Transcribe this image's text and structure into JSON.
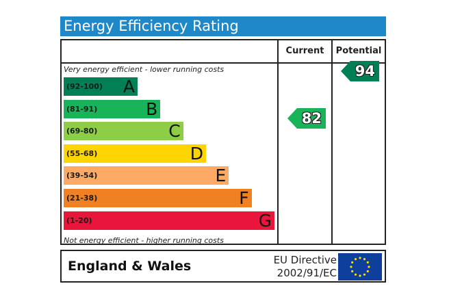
{
  "title": "Energy Efficiency Rating",
  "columns": {
    "current": "Current",
    "potential": "Potential"
  },
  "top_note": "Very energy efficient - lower running costs",
  "bottom_note": "Not energy efficient - higher running costs",
  "footer": {
    "region": "England & Wales",
    "directive_line1": "EU Directive",
    "directive_line2": "2002/91/EC"
  },
  "colors": {
    "title_bg": "#1e88c9",
    "flag": "#0f3f9c",
    "stars": "#ffdd00"
  },
  "chart_data": {
    "type": "bar",
    "title": "Energy Efficiency Rating",
    "bands": [
      {
        "letter": "A",
        "range": "(92-100)",
        "color": "#008054"
      },
      {
        "letter": "B",
        "range": "(81-91)",
        "color": "#19b459"
      },
      {
        "letter": "C",
        "range": "(69-80)",
        "color": "#8dce46"
      },
      {
        "letter": "D",
        "range": "(55-68)",
        "color": "#ffd500"
      },
      {
        "letter": "E",
        "range": "(39-54)",
        "color": "#fcaa65"
      },
      {
        "letter": "F",
        "range": "(21-38)",
        "color": "#ef8023"
      },
      {
        "letter": "G",
        "range": "(1-20)",
        "color": "#e9153b"
      }
    ],
    "ratings": [
      {
        "name": "Current",
        "value": 82,
        "band": "B",
        "color": "#19b459"
      },
      {
        "name": "Potential",
        "value": 94,
        "band": "A",
        "color": "#008054"
      }
    ]
  }
}
